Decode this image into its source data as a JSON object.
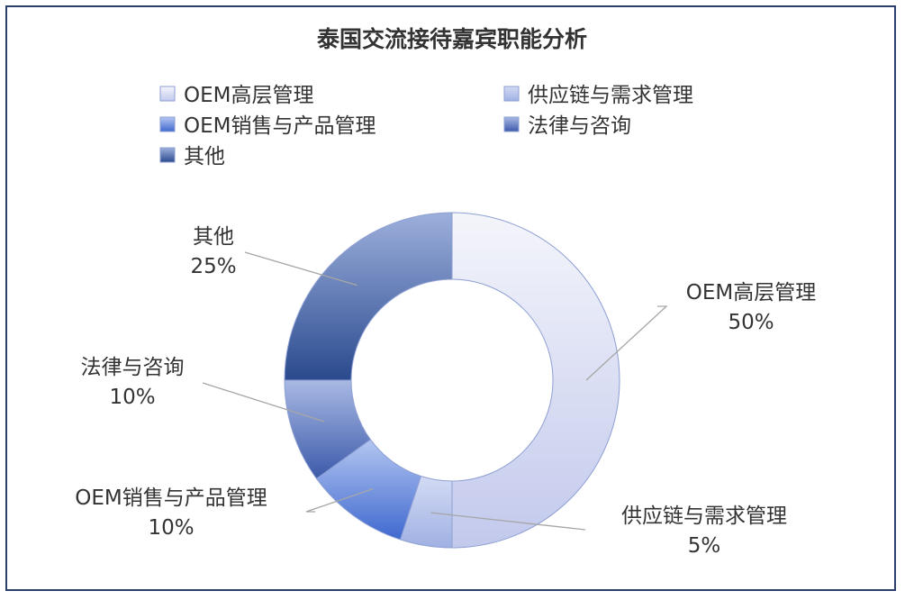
{
  "chart_data": {
    "type": "pie",
    "subtype": "donut",
    "title": "泰国交流接待嘉宾职能分析",
    "legend_position": "top",
    "categories": [
      "OEM高层管理",
      "供应链与需求管理",
      "OEM销售与产品管理",
      "法律与咨询",
      "其他"
    ],
    "values": [
      50,
      5,
      10,
      10,
      25
    ],
    "value_labels": [
      "50%",
      "5%",
      "10%",
      "10%",
      "25%"
    ],
    "colors": [
      [
        "#f4f5fb",
        "#c2c9ec"
      ],
      [
        "#d3dbf4",
        "#9fb0e3"
      ],
      [
        "#b4c6f1",
        "#3f69cf"
      ],
      [
        "#a9b9e4",
        "#3c5aaa"
      ],
      [
        "#9db0dc",
        "#2a4a8e"
      ]
    ],
    "slice_stroke": "#8e9fd3"
  }
}
